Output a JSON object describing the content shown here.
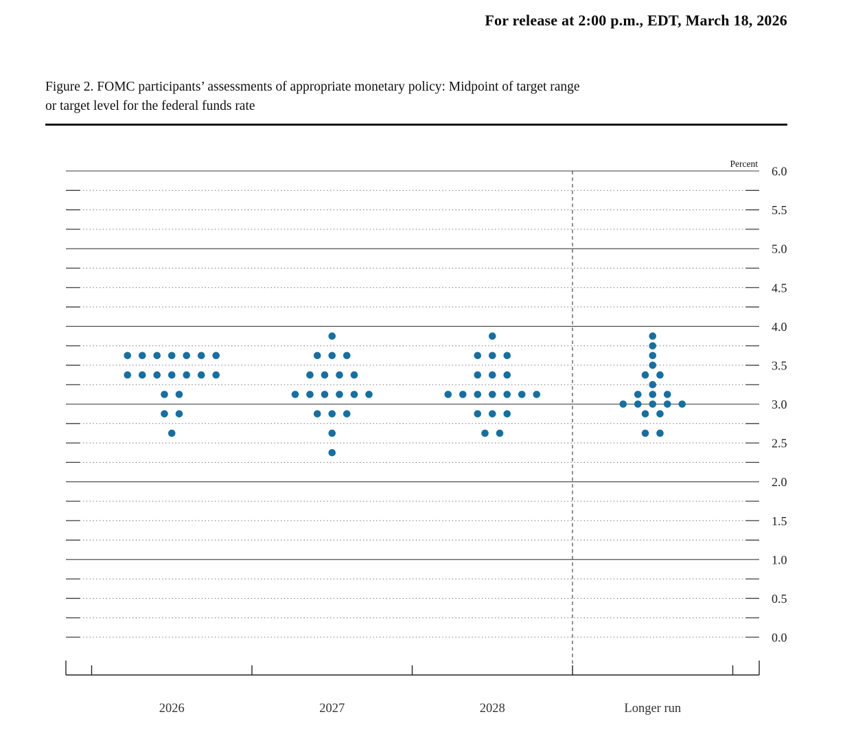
{
  "page": {
    "release_line": "For release at 2:00 p.m., EDT, March 18, 2026",
    "figure_title_line1": "Figure 2. FOMC participants’ assessments of appropriate monetary policy: Midpoint of target range",
    "figure_title_line2": "or target level for the federal funds rate"
  },
  "chart_data": {
    "type": "scatter",
    "subtype": "fomc-dot-plot",
    "title": "Figure 2. FOMC participants’ assessments of appropriate monetary policy: Midpoint of target range or target level for the federal funds rate",
    "ylabel": "Percent",
    "xlabel": "",
    "categories": [
      "2026",
      "2027",
      "2028",
      "Longer run"
    ],
    "y_axis": {
      "min": 0.0,
      "max": 6.0,
      "label_step": 0.5,
      "grid_step": 0.25,
      "solid_gridlines_at": [
        1.0,
        2.0,
        3.0,
        4.0,
        5.0,
        6.0
      ],
      "tick_labels": [
        "6.0",
        "5.5",
        "5.0",
        "4.5",
        "4.0",
        "3.5",
        "3.0",
        "2.5",
        "2.0",
        "1.5",
        "1.0",
        "0.5",
        "0.0"
      ]
    },
    "grid": "on",
    "legend": "none",
    "separator_before_category": "Longer run",
    "participants_per_column": 19,
    "dot_color": "#186f9f",
    "series": [
      {
        "name": "2026",
        "dots": [
          {
            "rate": 3.625,
            "count": 7
          },
          {
            "rate": 3.375,
            "count": 7
          },
          {
            "rate": 3.125,
            "count": 2
          },
          {
            "rate": 2.875,
            "count": 2
          },
          {
            "rate": 2.625,
            "count": 1
          }
        ]
      },
      {
        "name": "2027",
        "dots": [
          {
            "rate": 3.875,
            "count": 1
          },
          {
            "rate": 3.625,
            "count": 3
          },
          {
            "rate": 3.375,
            "count": 4
          },
          {
            "rate": 3.125,
            "count": 6
          },
          {
            "rate": 2.875,
            "count": 3
          },
          {
            "rate": 2.625,
            "count": 1
          },
          {
            "rate": 2.375,
            "count": 1
          }
        ]
      },
      {
        "name": "2028",
        "dots": [
          {
            "rate": 3.875,
            "count": 1
          },
          {
            "rate": 3.625,
            "count": 3
          },
          {
            "rate": 3.375,
            "count": 3
          },
          {
            "rate": 3.125,
            "count": 7
          },
          {
            "rate": 2.875,
            "count": 3
          },
          {
            "rate": 2.625,
            "count": 2
          }
        ]
      },
      {
        "name": "Longer run",
        "dots": [
          {
            "rate": 3.875,
            "count": 1
          },
          {
            "rate": 3.75,
            "count": 1
          },
          {
            "rate": 3.625,
            "count": 1
          },
          {
            "rate": 3.5,
            "count": 1
          },
          {
            "rate": 3.375,
            "count": 2
          },
          {
            "rate": 3.25,
            "count": 1
          },
          {
            "rate": 3.125,
            "count": 3
          },
          {
            "rate": 3.0,
            "count": 5
          },
          {
            "rate": 2.875,
            "count": 2
          },
          {
            "rate": 2.625,
            "count": 2
          }
        ]
      }
    ]
  }
}
